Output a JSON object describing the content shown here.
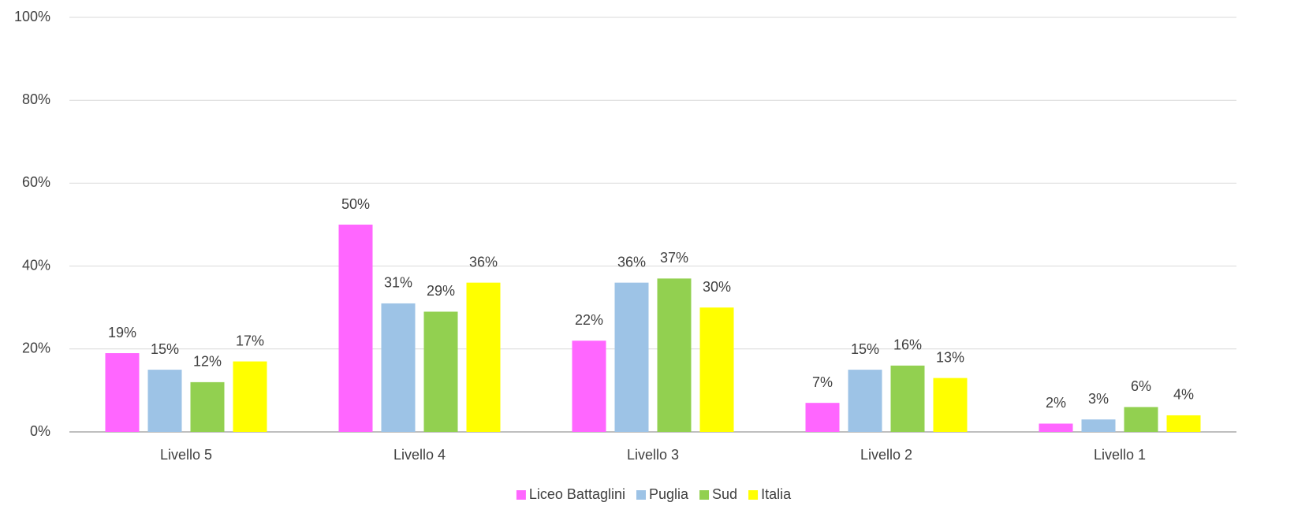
{
  "chart_data": {
    "type": "bar",
    "categories": [
      "Livello 5",
      "Livello 4",
      "Livello 3",
      "Livello 2",
      "Livello 1"
    ],
    "series": [
      {
        "name": "Liceo Battaglini",
        "color": "#ff66ff",
        "values": [
          19,
          50,
          22,
          7,
          2
        ],
        "value_labels": [
          "19%",
          "50%",
          "22%",
          "7%",
          "2%"
        ]
      },
      {
        "name": "Puglia",
        "color": "#9dc3e6",
        "values": [
          15,
          31,
          36,
          15,
          3
        ],
        "value_labels": [
          "15%",
          "31%",
          "36%",
          "15%",
          "3%"
        ]
      },
      {
        "name": "Sud",
        "color": "#92d050",
        "values": [
          12,
          29,
          37,
          16,
          6
        ],
        "value_labels": [
          "12%",
          "29%",
          "37%",
          "16%",
          "6%"
        ]
      },
      {
        "name": "Italia",
        "color": "#ffff00",
        "values": [
          17,
          36,
          30,
          13,
          4
        ],
        "value_labels": [
          "17%",
          "36%",
          "30%",
          "13%",
          "4%"
        ]
      }
    ],
    "ylim": [
      0,
      100
    ],
    "yticks": [
      {
        "value": 0,
        "label": "0%"
      },
      {
        "value": 20,
        "label": "20%"
      },
      {
        "value": 40,
        "label": "40%"
      },
      {
        "value": 60,
        "label": "60%"
      },
      {
        "value": 80,
        "label": "80%"
      },
      {
        "value": 100,
        "label": "100%"
      }
    ],
    "grid": true,
    "legend": "bottom"
  }
}
